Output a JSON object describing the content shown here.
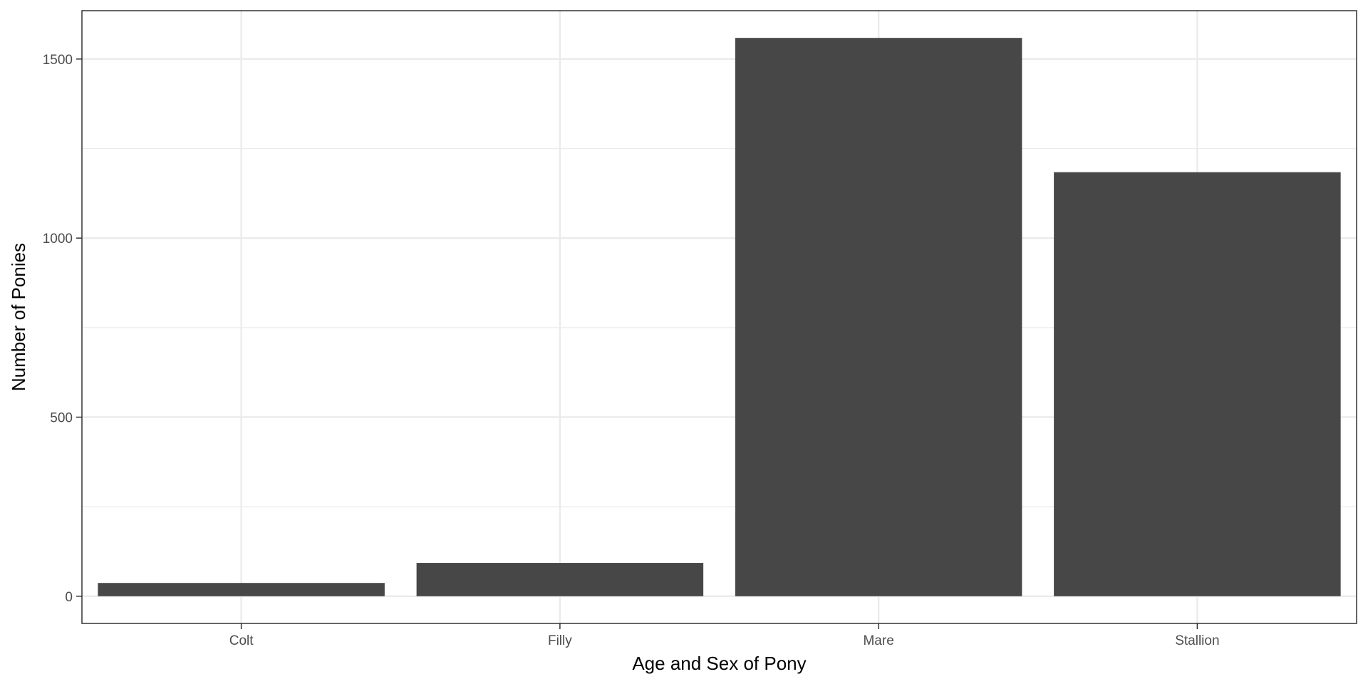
{
  "chart_data": {
    "type": "bar",
    "categories": [
      "Colt",
      "Filly",
      "Mare",
      "Stallion"
    ],
    "values": [
      37,
      93,
      1559,
      1184
    ],
    "xlabel": "Age and Sex of Pony",
    "ylabel": "Number of Ponies",
    "ylim": [
      -76,
      1635
    ],
    "yticks": [
      0,
      500,
      1000,
      1500
    ],
    "grid": true,
    "bar_color": "#474747",
    "gridline_color": "#ebebeb",
    "panel_border_color": "#333333"
  }
}
